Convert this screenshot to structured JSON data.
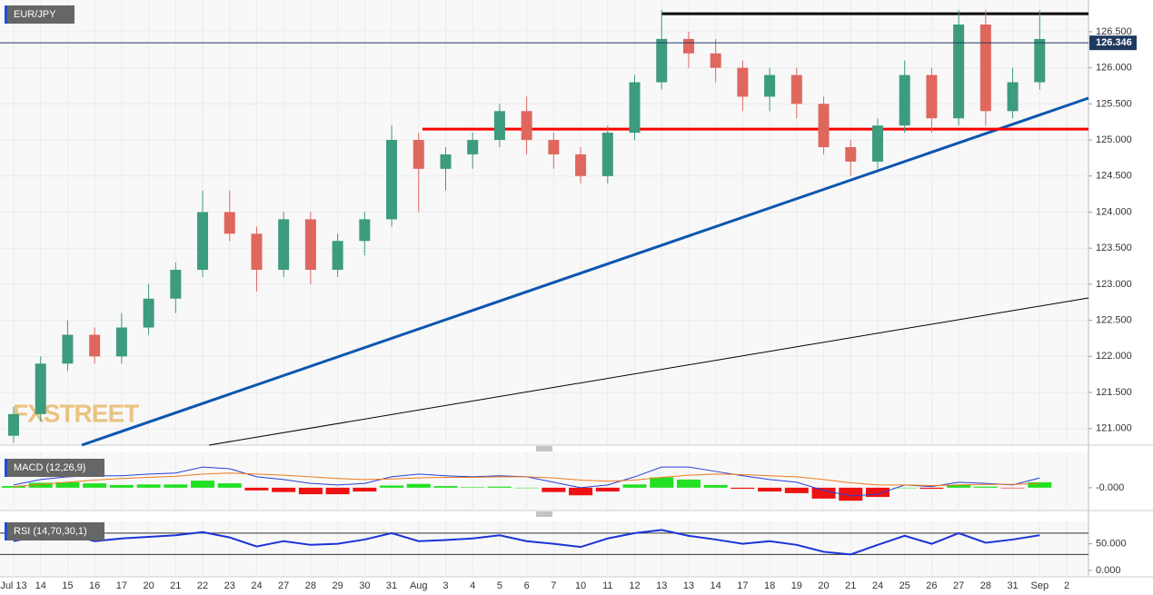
{
  "chart_data": [
    {
      "type": "candlestick",
      "title": "EUR/JPY",
      "watermark": "FXSTREET",
      "categories": [
        "Jul 13",
        "14",
        "15",
        "16",
        "17",
        "20",
        "21",
        "22",
        "23",
        "24",
        "27",
        "28",
        "29",
        "30",
        "31",
        "Aug",
        "3",
        "4",
        "5",
        "6",
        "7",
        "10",
        "11",
        "12",
        "13",
        "13",
        "14",
        "17",
        "18",
        "19",
        "20",
        "21",
        "24",
        "25",
        "26",
        "27",
        "28",
        "31",
        "Sep",
        "2"
      ],
      "open": [
        120.9,
        121.2,
        121.9,
        122.3,
        122.0,
        122.4,
        122.8,
        123.2,
        124.0,
        123.7,
        123.2,
        123.9,
        123.2,
        123.6,
        123.9,
        125.0,
        124.6,
        124.8,
        125.0,
        125.4,
        125.0,
        124.8,
        124.5,
        125.1,
        125.8,
        126.4,
        126.2,
        126.0,
        125.6,
        125.9,
        125.5,
        124.9,
        124.7,
        125.2,
        125.9,
        125.3,
        126.6,
        125.4,
        125.8,
        null
      ],
      "high": [
        121.3,
        122.0,
        122.5,
        122.4,
        122.6,
        123.0,
        123.3,
        124.3,
        124.3,
        123.8,
        124.0,
        124.0,
        123.7,
        124.0,
        125.2,
        125.1,
        124.9,
        125.1,
        125.5,
        125.6,
        125.1,
        124.9,
        125.2,
        125.9,
        126.8,
        126.5,
        126.4,
        126.1,
        126.0,
        126.0,
        125.6,
        125.0,
        125.3,
        126.1,
        126.0,
        126.8,
        126.8,
        126.0,
        126.8,
        null
      ],
      "low": [
        120.8,
        121.1,
        121.8,
        121.9,
        121.9,
        122.3,
        122.6,
        123.1,
        123.6,
        122.9,
        123.1,
        123.0,
        123.1,
        123.4,
        123.8,
        124.0,
        124.3,
        124.6,
        124.9,
        124.8,
        124.6,
        124.4,
        124.4,
        125.0,
        125.7,
        126.0,
        125.8,
        125.4,
        125.4,
        125.3,
        124.8,
        124.5,
        124.6,
        125.1,
        125.1,
        125.2,
        125.2,
        125.3,
        125.7,
        null
      ],
      "close": [
        121.2,
        121.9,
        122.3,
        122.0,
        122.4,
        122.8,
        123.2,
        124.0,
        123.7,
        123.2,
        123.9,
        123.2,
        123.6,
        123.9,
        125.0,
        124.6,
        124.8,
        125.0,
        125.4,
        125.0,
        124.8,
        124.5,
        125.1,
        125.8,
        126.4,
        126.2,
        126.0,
        125.6,
        125.9,
        125.5,
        124.9,
        124.7,
        125.2,
        125.9,
        125.3,
        126.6,
        125.4,
        125.8,
        126.4,
        null
      ],
      "up_color": "#3d9b7f",
      "down_color": "#e0675e",
      "ylim": [
        120.77,
        126.94
      ],
      "yticks": [
        {
          "value": 121,
          "label": "121.000"
        },
        {
          "value": 121.5,
          "label": "121.500"
        },
        {
          "value": 122,
          "label": "122.000"
        },
        {
          "value": 122.5,
          "label": "122.500"
        },
        {
          "value": 123,
          "label": "123.000"
        },
        {
          "value": 123.5,
          "label": "123.500"
        },
        {
          "value": 124,
          "label": "124.000"
        },
        {
          "value": 124.5,
          "label": "124.500"
        },
        {
          "value": 125,
          "label": "125.000"
        },
        {
          "value": 125.5,
          "label": "125.500"
        },
        {
          "value": 126,
          "label": "126.000"
        },
        {
          "value": 126.5,
          "label": "126.500"
        }
      ],
      "grid": true,
      "last_price": {
        "value": 126.346,
        "label": "126.346",
        "color": "#1f3a5f"
      },
      "levels": [
        {
          "value": 126.75,
          "color": "#000000"
        },
        {
          "value": 125.15,
          "color": "#ff0000"
        }
      ],
      "trendlines": [
        {
          "values": [
            120.77,
            125.58
          ],
          "color": "#0d56b0"
        },
        {
          "values": [
            120.77,
            122.81
          ],
          "color": "#000000"
        }
      ]
    },
    {
      "type": "macd",
      "title": "MACD (12,26,9)",
      "macd": {
        "color": "#2a3fd6",
        "values": [
          0.05,
          0.15,
          0.2,
          0.22,
          0.22,
          0.25,
          0.27,
          0.38,
          0.35,
          0.2,
          0.15,
          0.08,
          0.05,
          0.08,
          0.2,
          0.25,
          0.22,
          0.2,
          0.22,
          0.2,
          0.1,
          0.0,
          0.05,
          0.2,
          0.38,
          0.38,
          0.3,
          0.22,
          0.15,
          0.1,
          -0.05,
          -0.15,
          -0.12,
          0.05,
          0.02,
          0.1,
          0.08,
          0.05,
          0.18,
          null
        ]
      },
      "signal": {
        "color": "#f07a1a",
        "values": [
          0.02,
          0.06,
          0.1,
          0.14,
          0.17,
          0.19,
          0.21,
          0.25,
          0.27,
          0.25,
          0.23,
          0.2,
          0.17,
          0.15,
          0.16,
          0.18,
          0.19,
          0.19,
          0.2,
          0.2,
          0.18,
          0.14,
          0.12,
          0.14,
          0.19,
          0.23,
          0.25,
          0.24,
          0.22,
          0.2,
          0.15,
          0.09,
          0.05,
          0.05,
          0.04,
          0.05,
          0.06,
          0.06,
          0.08,
          null
        ]
      },
      "histogram": {
        "up_color": "#22e022",
        "down_color": "#ee1111",
        "values": [
          0.03,
          0.09,
          0.1,
          0.08,
          0.05,
          0.06,
          0.06,
          0.13,
          0.08,
          -0.05,
          -0.08,
          -0.12,
          -0.12,
          -0.07,
          0.04,
          0.07,
          0.03,
          0.01,
          0.02,
          0.0,
          -0.08,
          -0.14,
          -0.07,
          0.06,
          0.19,
          0.15,
          0.05,
          -0.02,
          -0.07,
          -0.1,
          -0.2,
          -0.24,
          -0.17,
          0.0,
          -0.02,
          0.05,
          0.02,
          -0.01,
          0.1,
          null
        ]
      },
      "ylim": [
        -0.42,
        0.65
      ],
      "yticks": [
        {
          "value": 0,
          "label": "-0.000"
        }
      ]
    },
    {
      "type": "line",
      "title": "RSI (14,70,30,1)",
      "color": "#1a33d6",
      "values": [
        55,
        65,
        68,
        55,
        60,
        63,
        66,
        72,
        62,
        45,
        55,
        48,
        50,
        58,
        70,
        55,
        57,
        60,
        66,
        55,
        50,
        44,
        60,
        70,
        76,
        65,
        58,
        50,
        55,
        48,
        35,
        30,
        48,
        65,
        50,
        70,
        52,
        58,
        66,
        null
      ],
      "levels": [
        70,
        30
      ],
      "ylim": [
        -12,
        92
      ],
      "yticks": [
        {
          "value": 50,
          "label": "50.000"
        },
        {
          "value": 0,
          "label": "0.000"
        }
      ]
    }
  ]
}
